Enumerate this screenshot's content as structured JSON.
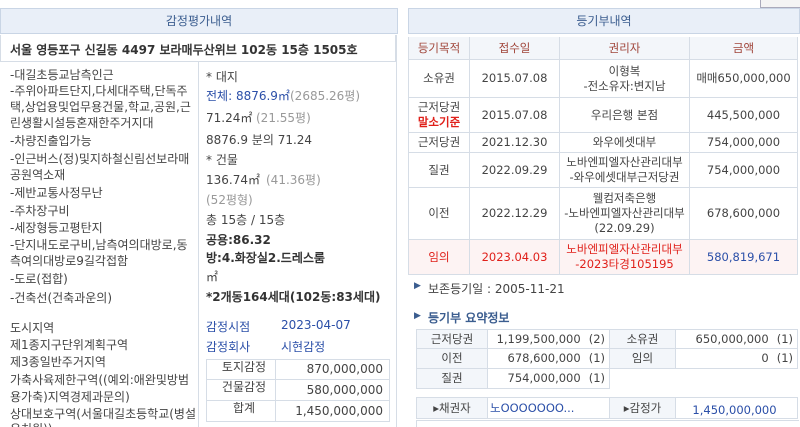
{
  "appraisal": {
    "title": "감정평가내역",
    "address": "서울 영등포구 신길동 4497 보라매두산위브 102동 15층 1505호",
    "notes": [
      "-대길초등교남측인근",
      "-주위아파트단지,다세대주택,단독주",
      "택,상업용및업무용건물,학교,공원,근",
      "린생활시설등혼재한주거지대",
      "-차량진출입가능",
      "-인근버스(정)및지하철신림선보라매",
      "공원역소재",
      "-제반교통사정무난",
      "-주차장구비",
      "-세장형등고평탄지",
      "-단지내도로구비,남측여의대방로,동",
      "측여의대방로9길각접함",
      "-도로(접합)",
      "-건축선(건축과운의)"
    ],
    "zoning": [
      "도시지역",
      "제1종지구단위계획구역",
      "제3종일반주거지역",
      "가축사육제한구역((예외:애완및방범",
      "용가축)지역경제과문의)",
      "상대보호구역(서울대길초등학교(병설",
      "유치원))"
    ],
    "land": {
      "label": "* 대지",
      "total": "전체: 8876.9㎡",
      "total_pyeong": "(2685.26평)",
      "area": "71.24㎡",
      "area_pyeong": "(21.55평)",
      "share": "8876.9 분의 71.24"
    },
    "building": {
      "label": "* 건물",
      "area": "136.74㎡",
      "area_pyeong": "(41.36평)",
      "type": "(52평형)",
      "floors": "총 15층 / 15층",
      "common": "공용:86.32",
      "rooms": "방:4.화장실2.드레스룸",
      "unit": "㎡",
      "complex": "*2개동164세대(102동:83세대)"
    },
    "date_label": "감정시점",
    "date": "2023-04-07",
    "company_label": "감정회사",
    "company": "시현감정",
    "valuation": [
      [
        "토지감정",
        "870,000,000"
      ],
      [
        "건물감정",
        "580,000,000"
      ],
      [
        "합계",
        "1,450,000,000"
      ]
    ]
  },
  "registry": {
    "title": "등기부내역",
    "columns": [
      "등기목적",
      "접수일",
      "권리자",
      "금액"
    ],
    "rows": [
      {
        "purpose": [
          "소유권"
        ],
        "date": "2015.07.08",
        "holder": [
          "이형복",
          "-전소유자:변지남"
        ],
        "amount": "매매650,000,000"
      },
      {
        "purpose": [
          "근저당권",
          "말소기준"
        ],
        "date": "2015.07.08",
        "holder": [
          "우리은행 본점"
        ],
        "amount": "445,500,000"
      },
      {
        "purpose": [
          "근저당권"
        ],
        "date": "2021.12.30",
        "holder": [
          "와우에셋대부"
        ],
        "amount": "754,000,000"
      },
      {
        "purpose": [
          "질권"
        ],
        "date": "2022.09.29",
        "holder": [
          "노바엔피엘자산관리대부",
          "-와우에셋대부근저당권"
        ],
        "amount": "754,000,000"
      },
      {
        "purpose": [
          "이전"
        ],
        "date": "2022.12.29",
        "holder": [
          "웰컴저축은행",
          "-노바엔피엘자산관리대부",
          "(22.09.29)"
        ],
        "amount": "678,600,000"
      },
      {
        "purpose": [
          "임의"
        ],
        "date": "2023.04.03",
        "holder": [
          "노바엔피엘자산관리대부",
          "-2023타경105195"
        ],
        "amount": "580,819,671"
      }
    ],
    "preservation": "보존등기일 : 2005-11-21",
    "summary_title": "등기부 요약정보",
    "summary": [
      [
        [
          "근저당권"
        ],
        [
          "1,199,500,000",
          "(2)"
        ],
        [
          "소유권"
        ],
        [
          "650,000,000",
          "(1)"
        ]
      ],
      [
        [
          "이전"
        ],
        [
          "678,600,000",
          "(1)"
        ],
        [
          "임의"
        ],
        [
          "0",
          "(1)"
        ]
      ],
      [
        [
          "질권"
        ],
        [
          "754,000,000",
          "(1)"
        ]
      ]
    ],
    "creditor_label": "▸채권자",
    "creditor": "노OOOOOOO...",
    "appraisal_label": "▸감정가",
    "appraisal_value": "1,450,000,000"
  }
}
